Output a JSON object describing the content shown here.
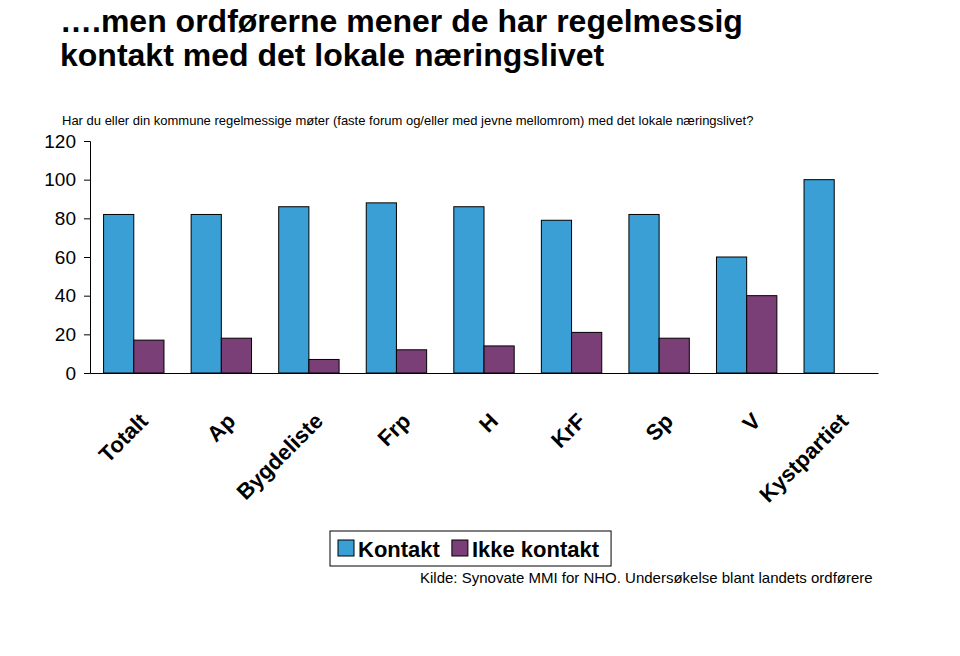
{
  "chart_data": {
    "type": "bar",
    "title": "….men ordførerne mener de har regelmessig kontakt med det lokale næringslivet",
    "subtitle": "Har du eller din kommune regelmessige møter (faste forum og/eller med jevne mellomrom) med det lokale næringslivet?",
    "categories": [
      "Totalt",
      "Ap",
      "Bygdeliste",
      "Frp",
      "H",
      "KrF",
      "Sp",
      "V",
      "Kystpartiet"
    ],
    "series": [
      {
        "name": "Kontakt",
        "color": "#3a9fd5",
        "values": [
          82,
          82,
          86,
          88,
          86,
          79,
          82,
          60,
          100
        ]
      },
      {
        "name": "Ikke kontakt",
        "color": "#7b3f78",
        "values": [
          17,
          18,
          7,
          12,
          14,
          21,
          18,
          40,
          0
        ]
      }
    ],
    "ylim": [
      0,
      120
    ],
    "yticks": [
      0,
      20,
      40,
      60,
      80,
      100,
      120
    ],
    "grid": false,
    "legend": "bottom",
    "annotations": [
      "Kilde: Synovate MMI for NHO. Undersøkelse blant landets ordførere"
    ]
  }
}
